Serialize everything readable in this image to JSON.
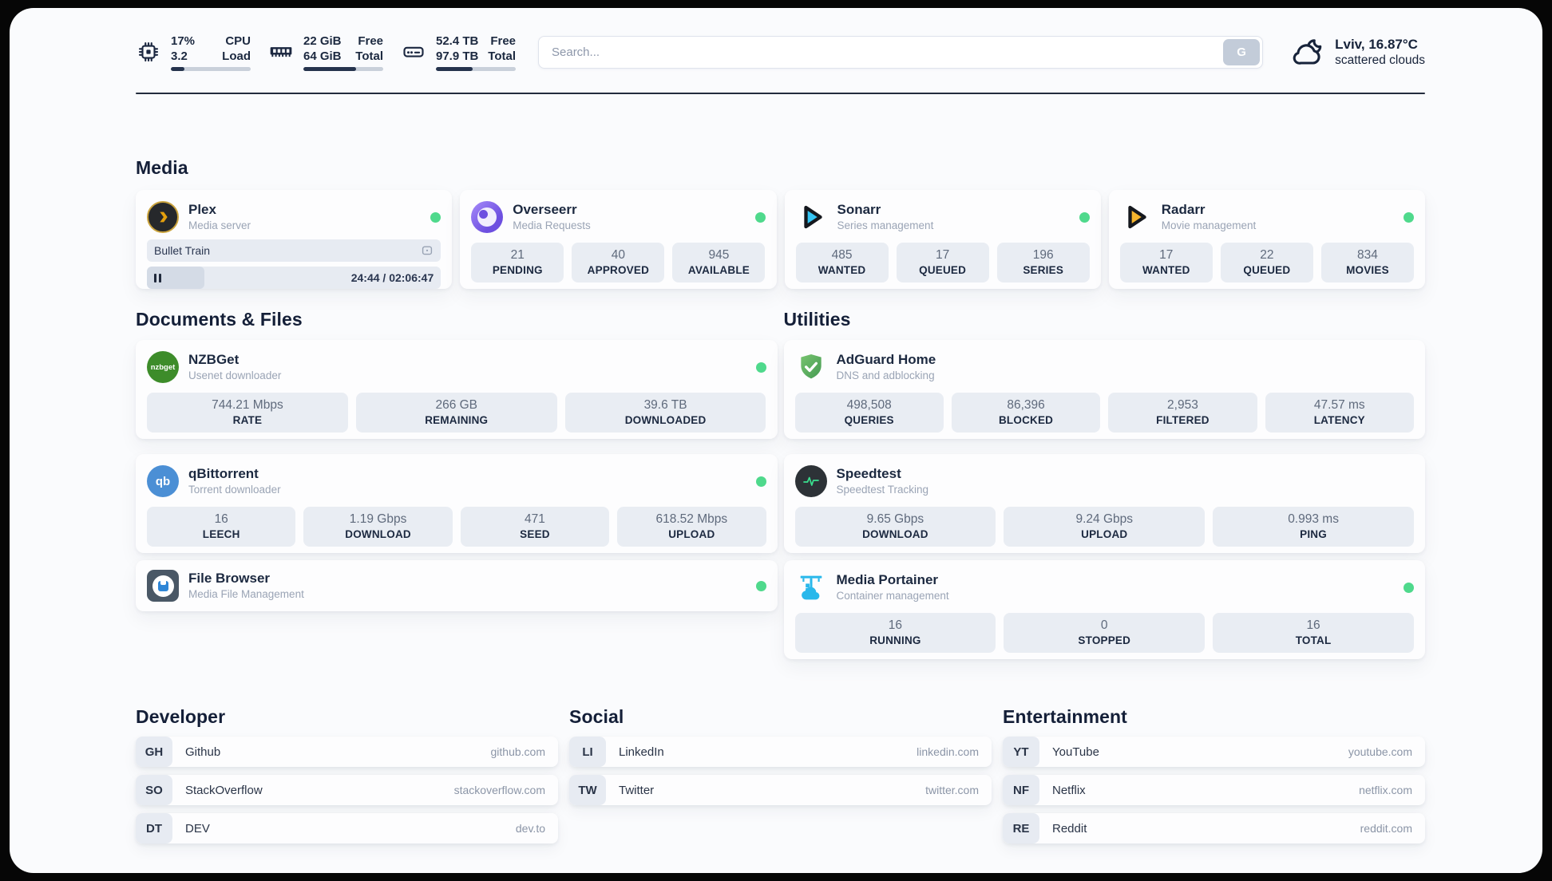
{
  "topbar": {
    "metrics": [
      {
        "value_top": "17%",
        "value_bottom": "3.2",
        "label_top": "CPU",
        "label_bottom": "Load",
        "progress": 17
      },
      {
        "value_top": "22 GiB",
        "value_bottom": "64 GiB",
        "label_top": "Free",
        "label_bottom": "Total",
        "progress": 66
      },
      {
        "value_top": "52.4 TB",
        "value_bottom": "97.9 TB",
        "label_top": "Free",
        "label_bottom": "Total",
        "progress": 46
      }
    ],
    "search": {
      "placeholder": "Search...",
      "button_label": "G"
    },
    "weather": {
      "location_temp": "Lviv, 16.87°C",
      "condition": "scattered clouds"
    }
  },
  "sections": {
    "media": {
      "title": "Media"
    },
    "documents": {
      "title": "Documents & Files"
    },
    "utilities": {
      "title": "Utilities"
    }
  },
  "apps": {
    "plex": {
      "name": "Plex",
      "subtitle": "Media server",
      "now_playing": {
        "title": "Bullet Train",
        "time_display": "24:44 / 02:06:47",
        "progress": 19.5
      }
    },
    "overseerr": {
      "name": "Overseerr",
      "subtitle": "Media Requests",
      "stats": [
        {
          "value": "21",
          "label": "PENDING"
        },
        {
          "value": "40",
          "label": "APPROVED"
        },
        {
          "value": "945",
          "label": "AVAILABLE"
        }
      ]
    },
    "sonarr": {
      "name": "Sonarr",
      "subtitle": "Series management",
      "stats": [
        {
          "value": "485",
          "label": "WANTED"
        },
        {
          "value": "17",
          "label": "QUEUED"
        },
        {
          "value": "196",
          "label": "SERIES"
        }
      ]
    },
    "radarr": {
      "name": "Radarr",
      "subtitle": "Movie management",
      "stats": [
        {
          "value": "17",
          "label": "WANTED"
        },
        {
          "value": "22",
          "label": "QUEUED"
        },
        {
          "value": "834",
          "label": "MOVIES"
        }
      ]
    },
    "nzbget": {
      "name": "NZBGet",
      "subtitle": "Usenet downloader",
      "logo_text": "nzbget",
      "stats": [
        {
          "value": "744.21 Mbps",
          "label": "RATE"
        },
        {
          "value": "266 GB",
          "label": "REMAINING"
        },
        {
          "value": "39.6 TB",
          "label": "DOWNLOADED"
        }
      ]
    },
    "qbittorrent": {
      "name": "qBittorrent",
      "subtitle": "Torrent downloader",
      "logo_text": "qb",
      "stats": [
        {
          "value": "16",
          "label": "LEECH"
        },
        {
          "value": "1.19 Gbps",
          "label": "DOWNLOAD"
        },
        {
          "value": "471",
          "label": "SEED"
        },
        {
          "value": "618.52 Mbps",
          "label": "UPLOAD"
        }
      ]
    },
    "filebrowser": {
      "name": "File Browser",
      "subtitle": "Media File Management"
    },
    "adguard": {
      "name": "AdGuard Home",
      "subtitle": "DNS and adblocking",
      "stats": [
        {
          "value": "498,508",
          "label": "QUERIES"
        },
        {
          "value": "86,396",
          "label": "BLOCKED"
        },
        {
          "value": "2,953",
          "label": "FILTERED"
        },
        {
          "value": "47.57 ms",
          "label": "LATENCY"
        }
      ]
    },
    "speedtest": {
      "name": "Speedtest",
      "subtitle": "Speedtest Tracking",
      "stats": [
        {
          "value": "9.65 Gbps",
          "label": "DOWNLOAD"
        },
        {
          "value": "9.24 Gbps",
          "label": "UPLOAD"
        },
        {
          "value": "0.993 ms",
          "label": "PING"
        }
      ]
    },
    "portainer": {
      "name": "Media Portainer",
      "subtitle": "Container management",
      "stats": [
        {
          "value": "16",
          "label": "RUNNING"
        },
        {
          "value": "0",
          "label": "STOPPED"
        },
        {
          "value": "16",
          "label": "TOTAL"
        }
      ]
    }
  },
  "bookmarks": {
    "developer": {
      "title": "Developer",
      "items": [
        {
          "abbr": "GH",
          "name": "Github",
          "url": "github.com"
        },
        {
          "abbr": "SO",
          "name": "StackOverflow",
          "url": "stackoverflow.com"
        },
        {
          "abbr": "DT",
          "name": "DEV",
          "url": "dev.to"
        }
      ]
    },
    "social": {
      "title": "Social",
      "items": [
        {
          "abbr": "LI",
          "name": "LinkedIn",
          "url": "linkedin.com"
        },
        {
          "abbr": "TW",
          "name": "Twitter",
          "url": "twitter.com"
        }
      ]
    },
    "entertainment": {
      "title": "Entertainment",
      "items": [
        {
          "abbr": "YT",
          "name": "YouTube",
          "url": "youtube.com"
        },
        {
          "abbr": "NF",
          "name": "Netflix",
          "url": "netflix.com"
        },
        {
          "abbr": "RE",
          "name": "Reddit",
          "url": "reddit.com"
        }
      ]
    }
  },
  "colors": {
    "accent_green": "#4fd98c",
    "plex_amber": "#e5a00d",
    "sonarr_cyan": "#35c5f4",
    "radarr_amber": "#f5b52e",
    "portainer_blue": "#29b8eb",
    "adguard_green": "#5aad68"
  }
}
